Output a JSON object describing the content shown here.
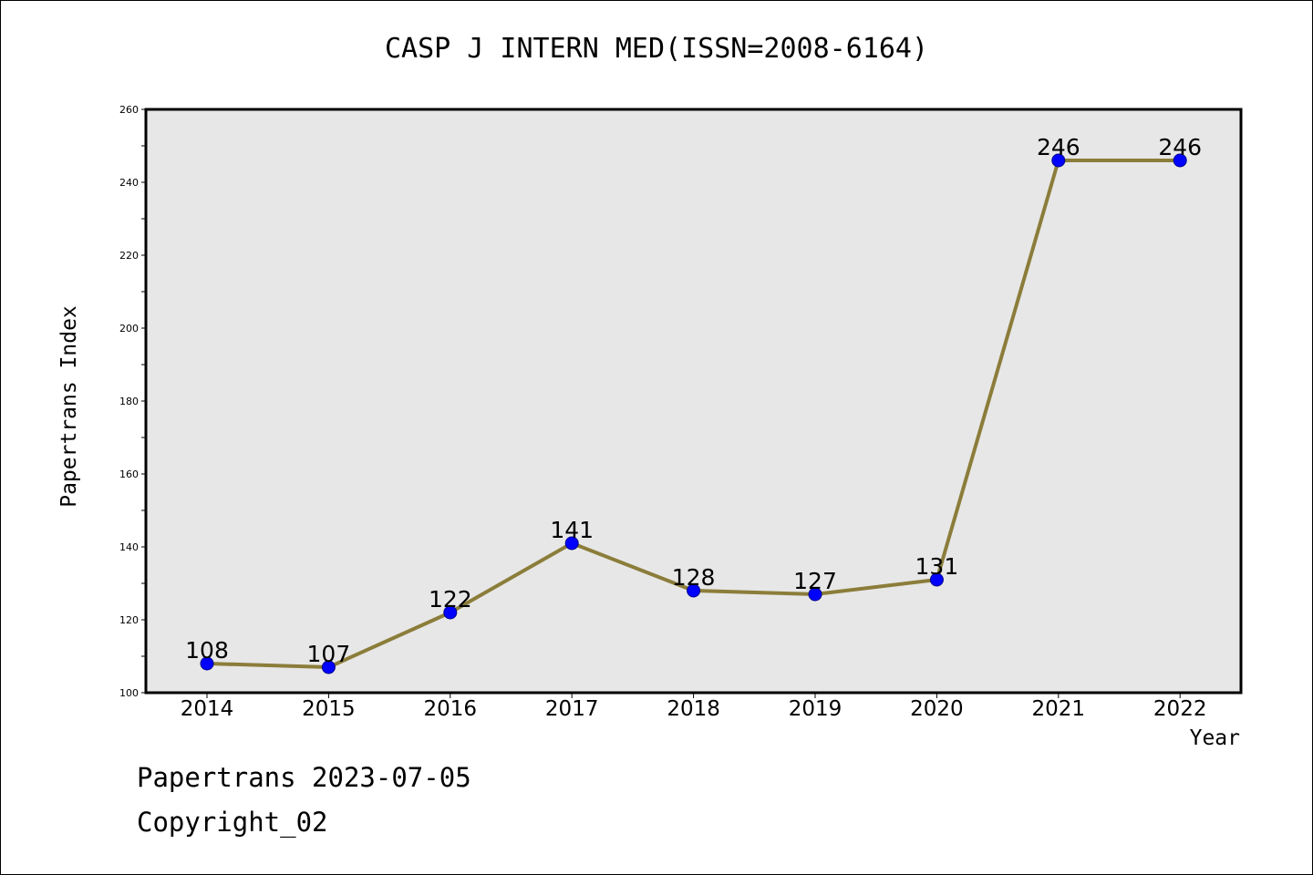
{
  "chart_data": {
    "type": "line",
    "title": "CASP J INTERN MED(ISSN=2008-6164)",
    "xlabel": "Year",
    "ylabel": "Papertrans Index",
    "categories": [
      "2014",
      "2015",
      "2016",
      "2017",
      "2018",
      "2019",
      "2020",
      "2021",
      "2022"
    ],
    "series": [
      {
        "values": [
          108,
          107,
          122,
          141,
          128,
          127,
          131,
          246,
          246
        ]
      }
    ],
    "data_labels": [
      "108",
      "107",
      "122",
      "141",
      "128",
      "127",
      "131",
      "246",
      "246"
    ],
    "y_ticks": [
      100,
      120,
      140,
      160,
      180,
      200,
      220,
      240,
      260
    ],
    "ylim": [
      100,
      260
    ],
    "grid": false,
    "colors": {
      "line": "#8B7D3A",
      "marker": "#0000FF",
      "plot_background": "#E7E7E7"
    }
  },
  "footer": {
    "date_text": "Papertrans 2023-07-05",
    "copyright_text": "Copyright_02"
  }
}
